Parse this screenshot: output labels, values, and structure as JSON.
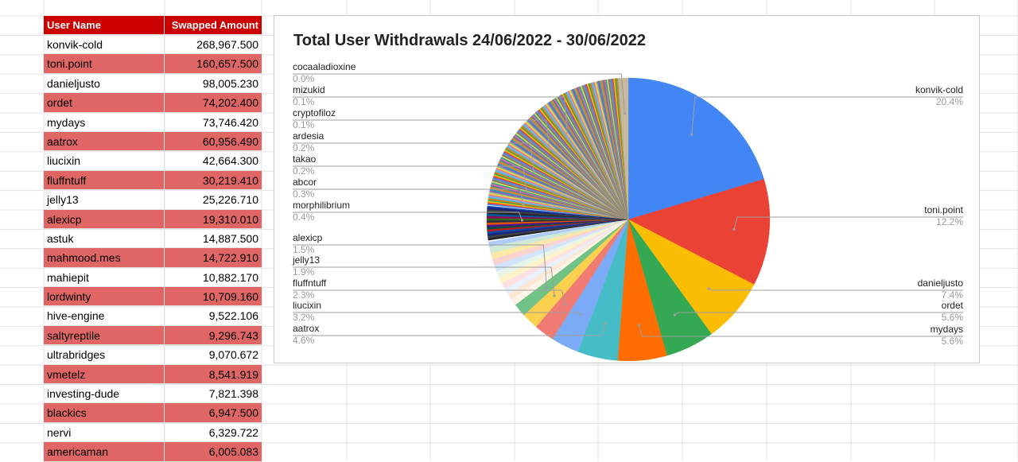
{
  "table": {
    "headers": [
      "User Name",
      "Swapped Amount"
    ],
    "rows": [
      [
        "konvik-cold",
        "268,967.500"
      ],
      [
        "toni.point",
        "160,657.500"
      ],
      [
        "danieljusto",
        "98,005.230"
      ],
      [
        "ordet",
        "74,202.400"
      ],
      [
        "mydays",
        "73,746.420"
      ],
      [
        "aatrox",
        "60,956.490"
      ],
      [
        "liucixin",
        "42,664.300"
      ],
      [
        "fluffntuff",
        "30,219.410"
      ],
      [
        "jelly13",
        "25,226.710"
      ],
      [
        "alexicp",
        "19,310.010"
      ],
      [
        "astuk",
        "14,887.500"
      ],
      [
        "mahmood.mes",
        "14,722.910"
      ],
      [
        "mahiepit",
        "10,882.170"
      ],
      [
        "lordwinty",
        "10,709.160"
      ],
      [
        "hive-engine",
        "9,522.106"
      ],
      [
        "saltyreptile",
        "9,296.743"
      ],
      [
        "ultrabridges",
        "9,070.672"
      ],
      [
        "vmetelz",
        "8,541.919"
      ],
      [
        "investing-dude",
        "7,821.398"
      ],
      [
        "blackics",
        "6,947.500"
      ],
      [
        "nervi",
        "6,329.722"
      ],
      [
        "americaman",
        "6,005.083"
      ]
    ],
    "colors": {
      "header": "#cc0000",
      "alt_row": "#e06666"
    }
  },
  "chart_data": {
    "type": "pie",
    "title": "Total User Withdrawals 24/06/2022 - 30/06/2022",
    "slices": [
      {
        "label": "konvik-cold",
        "value": 268967.5,
        "percent": "20.4%",
        "color": "#4285f4"
      },
      {
        "label": "toni.point",
        "value": 160657.5,
        "percent": "12.2%",
        "color": "#ea4335"
      },
      {
        "label": "danieljusto",
        "value": 98005.23,
        "percent": "7.4%",
        "color": "#fbbc04"
      },
      {
        "label": "ordet",
        "value": 74202.4,
        "percent": "5.6%",
        "color": "#34a853"
      },
      {
        "label": "mydays",
        "value": 73746.42,
        "percent": "5.6%",
        "color": "#ff6d01"
      },
      {
        "label": "aatrox",
        "value": 60956.49,
        "percent": "4.6%",
        "color": "#46bdc6"
      },
      {
        "label": "liucixin",
        "value": 42664.3,
        "percent": "3.2%",
        "color": "#7baaf7"
      },
      {
        "label": "fluffntuff",
        "value": 30219.41,
        "percent": "2.3%",
        "color": "#f07b72"
      },
      {
        "label": "jelly13",
        "value": 25226.71,
        "percent": "1.9%",
        "color": "#fcd04f"
      },
      {
        "label": "alexicp",
        "value": 19310.01,
        "percent": "1.5%",
        "color": "#71c287"
      },
      {
        "label": "morphilibrium",
        "percent": "0.4%"
      },
      {
        "label": "abcor",
        "percent": "0.3%"
      },
      {
        "label": "takao",
        "percent": "0.2%"
      },
      {
        "label": "ardesia",
        "percent": "0.2%"
      },
      {
        "label": "cryptofiloz",
        "percent": "0.1%"
      },
      {
        "label": "mizukid",
        "percent": "0.1%"
      },
      {
        "label": "cocaaladioxine",
        "percent": "0.0%"
      }
    ],
    "legend": "labels beside slices"
  }
}
